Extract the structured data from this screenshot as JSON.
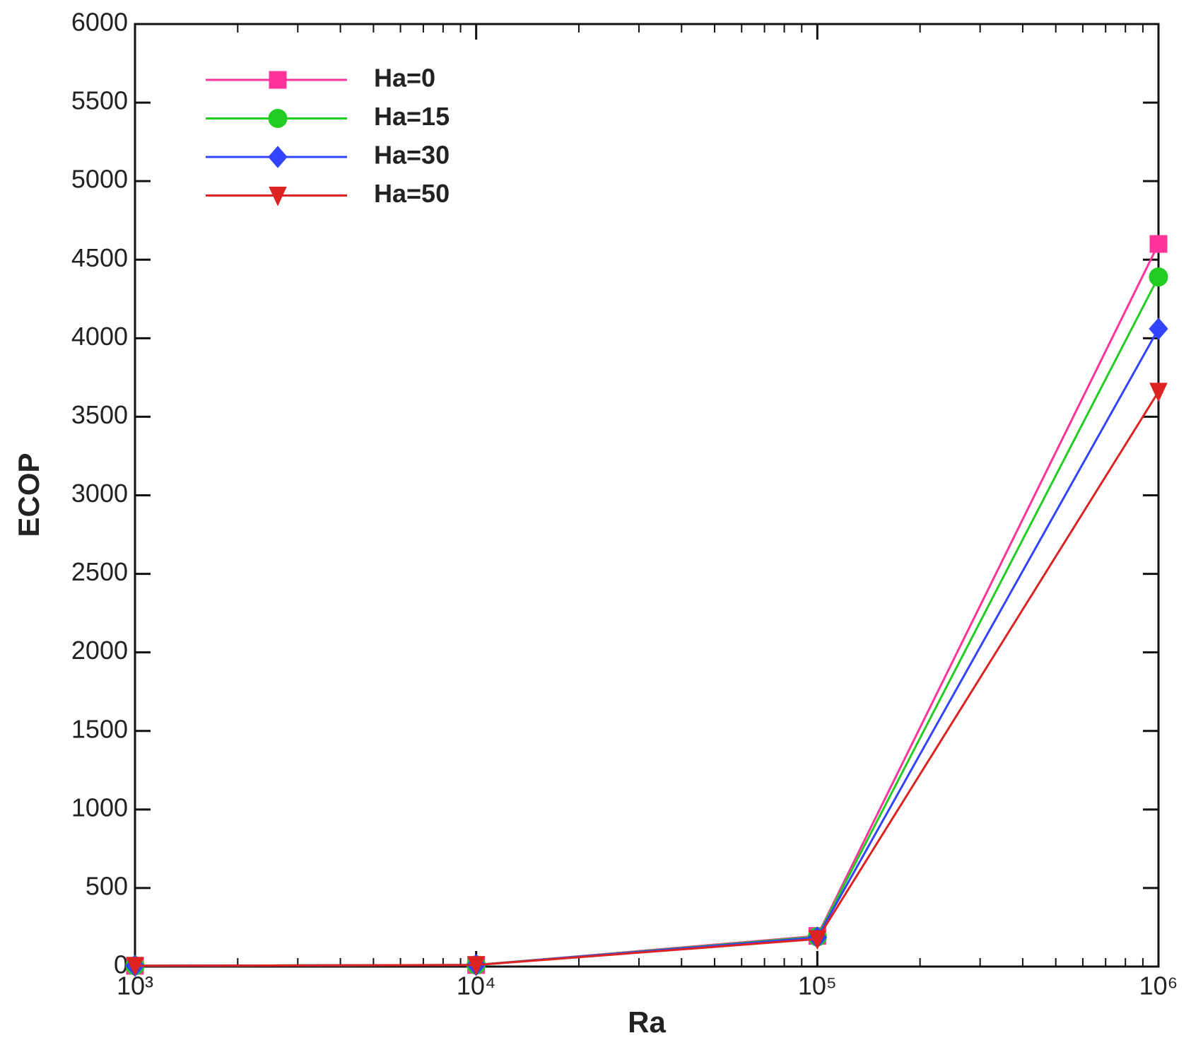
{
  "chart_data": {
    "type": "line",
    "x_label": "Ra",
    "y_label": "ECOP",
    "x": [
      1000,
      10000,
      100000,
      1000000
    ],
    "series": [
      {
        "name": "Ha=0",
        "color": "#ff3399",
        "marker": "square",
        "values": [
          5,
          10,
          195,
          4600
        ]
      },
      {
        "name": "Ha=15",
        "color": "#22cc22",
        "marker": "circle",
        "values": [
          5,
          10,
          190,
          4390
        ]
      },
      {
        "name": "Ha=30",
        "color": "#3344ff",
        "marker": "diamond",
        "values": [
          5,
          10,
          185,
          4060
        ]
      },
      {
        "name": "Ha=50",
        "color": "#dd2222",
        "marker": "triangle-down",
        "values": [
          5,
          10,
          175,
          3660
        ]
      }
    ],
    "xscale": "log",
    "xlim": [
      1000,
      1000000
    ],
    "xticks": [
      {
        "value": 1000,
        "label": "10³"
      },
      {
        "value": 10000,
        "label": "10⁴"
      },
      {
        "value": 100000,
        "label": "10⁵"
      },
      {
        "value": 1000000,
        "label": "10⁶"
      }
    ],
    "ylim": [
      0,
      6000
    ],
    "yticks": [
      0,
      500,
      1000,
      1500,
      2000,
      2500,
      3000,
      3500,
      4000,
      4500,
      5000,
      5500,
      6000
    ],
    "legend": "upper left"
  }
}
